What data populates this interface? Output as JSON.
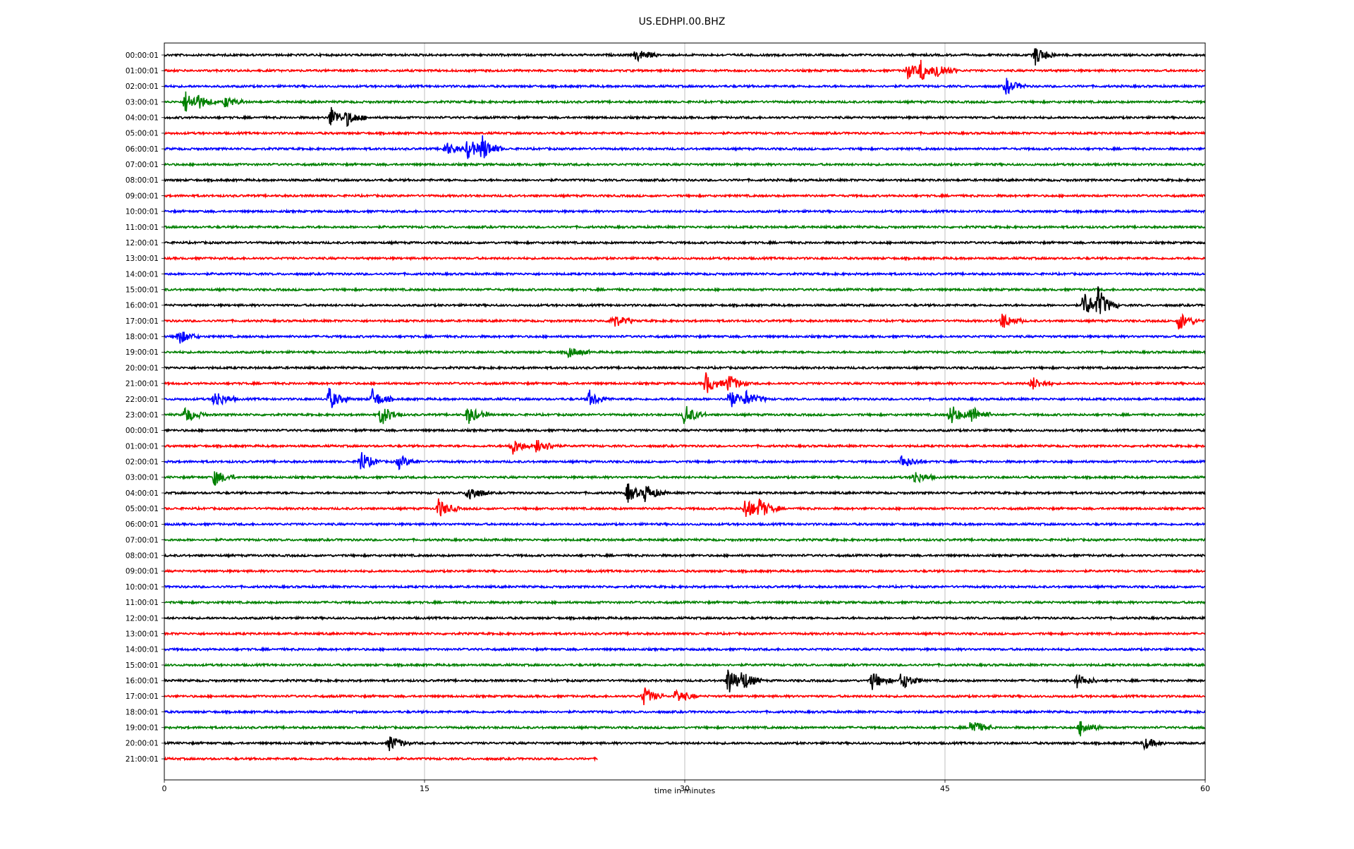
{
  "chart_data": {
    "type": "line",
    "subtype": "helicorder",
    "title": "US.EDHPI.00.BHZ",
    "xlabel": "time in minutes",
    "ylabel": "",
    "xlim": [
      0,
      60
    ],
    "x_ticks": [
      0,
      15,
      30,
      45,
      60
    ],
    "grid": "vertical",
    "trace_colors": [
      "#000000",
      "#ff0000",
      "#0000ff",
      "#008000"
    ],
    "row_labels": [
      "00:00:01",
      "01:00:01",
      "02:00:01",
      "03:00:01",
      "04:00:01",
      "05:00:01",
      "06:00:01",
      "07:00:01",
      "08:00:01",
      "09:00:01",
      "10:00:01",
      "11:00:01",
      "12:00:01",
      "13:00:01",
      "14:00:01",
      "15:00:01",
      "16:00:01",
      "17:00:01",
      "18:00:01",
      "19:00:01",
      "20:00:01",
      "21:00:01",
      "22:00:01",
      "23:00:01",
      "00:00:01",
      "01:00:01",
      "02:00:01",
      "03:00:01",
      "04:00:01",
      "05:00:01",
      "06:00:01",
      "07:00:01",
      "08:00:01",
      "09:00:01",
      "10:00:01",
      "11:00:01",
      "12:00:01",
      "13:00:01",
      "14:00:01",
      "15:00:01",
      "16:00:01",
      "17:00:01",
      "18:00:01",
      "19:00:01",
      "20:00:01",
      "21:00:01"
    ],
    "last_row_end_minute": 25,
    "events": [
      {
        "row": 0,
        "minute": 27.2,
        "amp": 0.4
      },
      {
        "row": 0,
        "minute": 50.2,
        "amp": 0.6
      },
      {
        "row": 1,
        "minute": 42.8,
        "amp": 0.5
      },
      {
        "row": 1,
        "minute": 43.6,
        "amp": 0.7
      },
      {
        "row": 1,
        "minute": 44.5,
        "amp": 0.6
      },
      {
        "row": 2,
        "minute": 48.5,
        "amp": 0.5
      },
      {
        "row": 3,
        "minute": 1.2,
        "amp": 0.7
      },
      {
        "row": 3,
        "minute": 1.8,
        "amp": 0.6
      },
      {
        "row": 3,
        "minute": 3.5,
        "amp": 0.3
      },
      {
        "row": 4,
        "minute": 9.6,
        "amp": 0.7
      },
      {
        "row": 4,
        "minute": 10.5,
        "amp": 0.5
      },
      {
        "row": 6,
        "minute": 16.2,
        "amp": 0.4
      },
      {
        "row": 6,
        "minute": 17.5,
        "amp": 0.7
      },
      {
        "row": 6,
        "minute": 18.3,
        "amp": 0.9
      },
      {
        "row": 16,
        "minute": 53.0,
        "amp": 0.9
      },
      {
        "row": 16,
        "minute": 53.8,
        "amp": 1.2
      },
      {
        "row": 17,
        "minute": 25.8,
        "amp": 0.5
      },
      {
        "row": 17,
        "minute": 48.3,
        "amp": 0.5
      },
      {
        "row": 17,
        "minute": 58.5,
        "amp": 0.6
      },
      {
        "row": 18,
        "minute": 0.8,
        "amp": 0.5
      },
      {
        "row": 19,
        "minute": 23.3,
        "amp": 0.3
      },
      {
        "row": 21,
        "minute": 31.2,
        "amp": 0.7
      },
      {
        "row": 21,
        "minute": 32.5,
        "amp": 0.6
      },
      {
        "row": 21,
        "minute": 50.0,
        "amp": 0.4
      },
      {
        "row": 22,
        "minute": 2.9,
        "amp": 0.6
      },
      {
        "row": 22,
        "minute": 9.5,
        "amp": 0.7
      },
      {
        "row": 22,
        "minute": 12.0,
        "amp": 0.6
      },
      {
        "row": 22,
        "minute": 24.5,
        "amp": 0.5
      },
      {
        "row": 22,
        "minute": 32.5,
        "amp": 0.7
      },
      {
        "row": 22,
        "minute": 33.5,
        "amp": 0.5
      },
      {
        "row": 23,
        "minute": 1.2,
        "amp": 0.5
      },
      {
        "row": 23,
        "minute": 12.5,
        "amp": 0.7
      },
      {
        "row": 23,
        "minute": 17.5,
        "amp": 0.6
      },
      {
        "row": 23,
        "minute": 30.0,
        "amp": 0.7
      },
      {
        "row": 23,
        "minute": 45.3,
        "amp": 0.7
      },
      {
        "row": 23,
        "minute": 46.5,
        "amp": 0.6
      },
      {
        "row": 25,
        "minute": 20.0,
        "amp": 0.6
      },
      {
        "row": 25,
        "minute": 21.5,
        "amp": 0.6
      },
      {
        "row": 26,
        "minute": 11.3,
        "amp": 0.7
      },
      {
        "row": 26,
        "minute": 13.5,
        "amp": 0.4
      },
      {
        "row": 26,
        "minute": 42.5,
        "amp": 0.4
      },
      {
        "row": 27,
        "minute": 2.9,
        "amp": 0.5
      },
      {
        "row": 27,
        "minute": 43.2,
        "amp": 0.4
      },
      {
        "row": 28,
        "minute": 17.5,
        "amp": 0.6
      },
      {
        "row": 28,
        "minute": 26.7,
        "amp": 0.6
      },
      {
        "row": 28,
        "minute": 27.7,
        "amp": 0.6
      },
      {
        "row": 29,
        "minute": 15.8,
        "amp": 0.6
      },
      {
        "row": 29,
        "minute": 33.5,
        "amp": 0.8
      },
      {
        "row": 29,
        "minute": 34.3,
        "amp": 0.7
      },
      {
        "row": 40,
        "minute": 32.5,
        "amp": 1.0
      },
      {
        "row": 40,
        "minute": 33.3,
        "amp": 0.7
      },
      {
        "row": 40,
        "minute": 40.8,
        "amp": 0.6
      },
      {
        "row": 40,
        "minute": 42.5,
        "amp": 0.6
      },
      {
        "row": 40,
        "minute": 52.6,
        "amp": 0.4
      },
      {
        "row": 41,
        "minute": 27.6,
        "amp": 0.6
      },
      {
        "row": 41,
        "minute": 29.5,
        "amp": 0.4
      },
      {
        "row": 43,
        "minute": 46.5,
        "amp": 0.6
      },
      {
        "row": 43,
        "minute": 52.8,
        "amp": 0.5
      },
      {
        "row": 44,
        "minute": 13.0,
        "amp": 0.5
      },
      {
        "row": 44,
        "minute": 56.5,
        "amp": 0.3
      }
    ]
  }
}
